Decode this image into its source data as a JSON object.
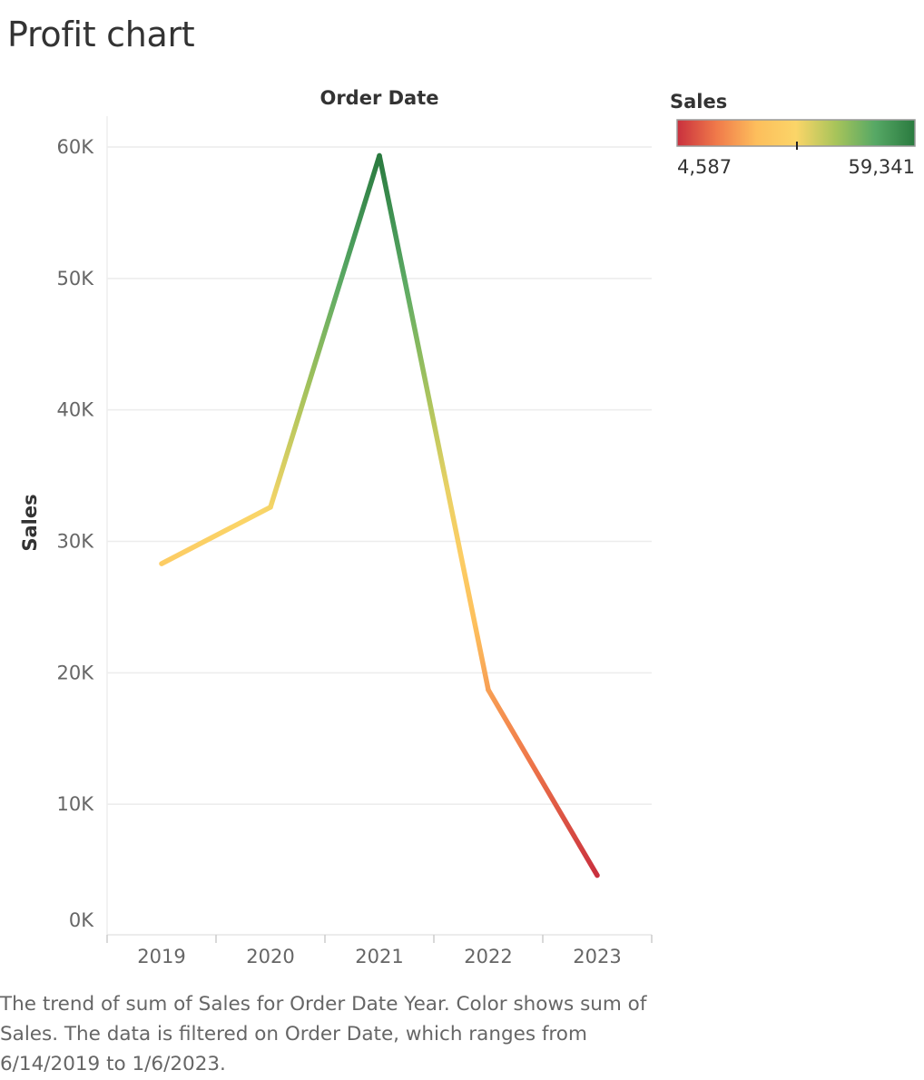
{
  "title": "Profit chart",
  "caption": "The trend of sum of Sales for Order Date Year.  Color shows sum of Sales. The data is filtered on Order Date, which ranges from 6/14/2019 to 1/6/2023.",
  "chart_data": {
    "type": "line",
    "title": "",
    "xlabel": "Order Date",
    "ylabel": "Sales",
    "categories": [
      "2019",
      "2020",
      "2021",
      "2022",
      "2023"
    ],
    "series": [
      {
        "values": [
          28300,
          32600,
          59341,
          18700,
          4587
        ]
      }
    ],
    "ylim": [
      0,
      60000
    ],
    "yticks": [
      0,
      10000,
      20000,
      30000,
      40000,
      50000,
      60000
    ],
    "ytick_labels": [
      "0K",
      "10K",
      "20K",
      "30K",
      "40K",
      "50K",
      "60K"
    ],
    "grid": true,
    "color_legend": {
      "title": "Sales",
      "min_label": "4,587",
      "max_label": "59,341",
      "min": 4587,
      "max": 59341,
      "placement": "top-right",
      "colors": [
        "#c9303e",
        "#f07a4a",
        "#fdbe5c",
        "#fbd568",
        "#a8c45a",
        "#56a865",
        "#2a7a3f"
      ]
    }
  }
}
